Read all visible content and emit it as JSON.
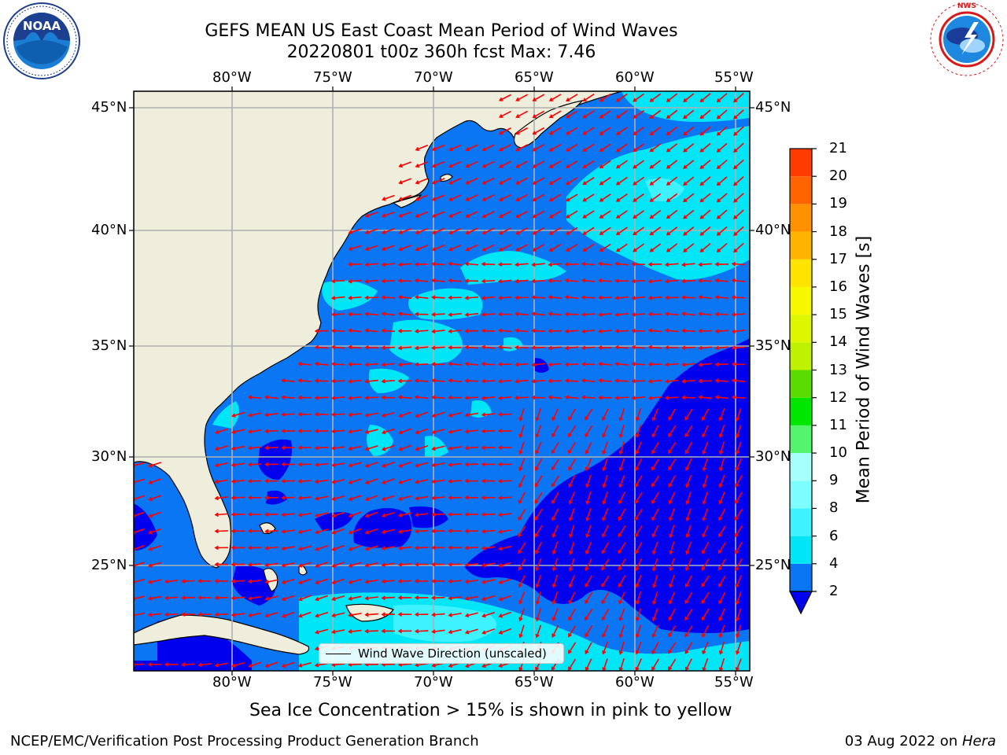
{
  "title": {
    "line1": "GEFS MEAN US East Coast Mean Period of Wind Waves",
    "line2": "20220801 t00z 360h fcst   Max: 7.46"
  },
  "map": {
    "lon_labels": [
      "80°W",
      "75°W",
      "70°W",
      "65°W",
      "60°W",
      "55°W"
    ],
    "lat_labels": [
      "45°N",
      "40°N",
      "35°N",
      "30°N",
      "25°N"
    ],
    "legend_label": "Wind Wave Direction (unscaled)",
    "arrow_color": "#ff0000",
    "land_color": "#efeedc",
    "gridline_color": "#b0b0b0"
  },
  "colorbar": {
    "label": "Mean Period of Wind Waves [s]",
    "ticks": [
      "2",
      "4",
      "6",
      "8",
      "9",
      "10",
      "11",
      "12",
      "13",
      "14",
      "15",
      "16",
      "17",
      "18",
      "19",
      "20",
      "21"
    ],
    "colors": [
      "#0a76f4",
      "#00e6f6",
      "#3ef3ff",
      "#7efdff",
      "#a6fffa",
      "#54f56c",
      "#00e600",
      "#5bdc00",
      "#bff200",
      "#dcf700",
      "#f7f700",
      "#ffe400",
      "#ffb400",
      "#ff9000",
      "#ff6400",
      "#ff3c00",
      "#ff0000"
    ],
    "under_color": "#0000ee"
  },
  "logos": {
    "left": {
      "center_text": "NOAA",
      "ring_text": "NATIONAL OCEANIC AND ATMOSPHERIC ADMINISTRATION · U.S. DEPARTMENT OF COMMERCE"
    },
    "right": {
      "ring_text": "NATIONAL WEATHER SERVICE"
    }
  },
  "footer": {
    "sea_ice_note": "Sea Ice Concentration > 15% is shown in pink to yellow",
    "left": "NCEP/EMC/Verification Post Processing Product Generation Branch",
    "right_date": "03 Aug 2022 on ",
    "right_host": "Hera"
  }
}
